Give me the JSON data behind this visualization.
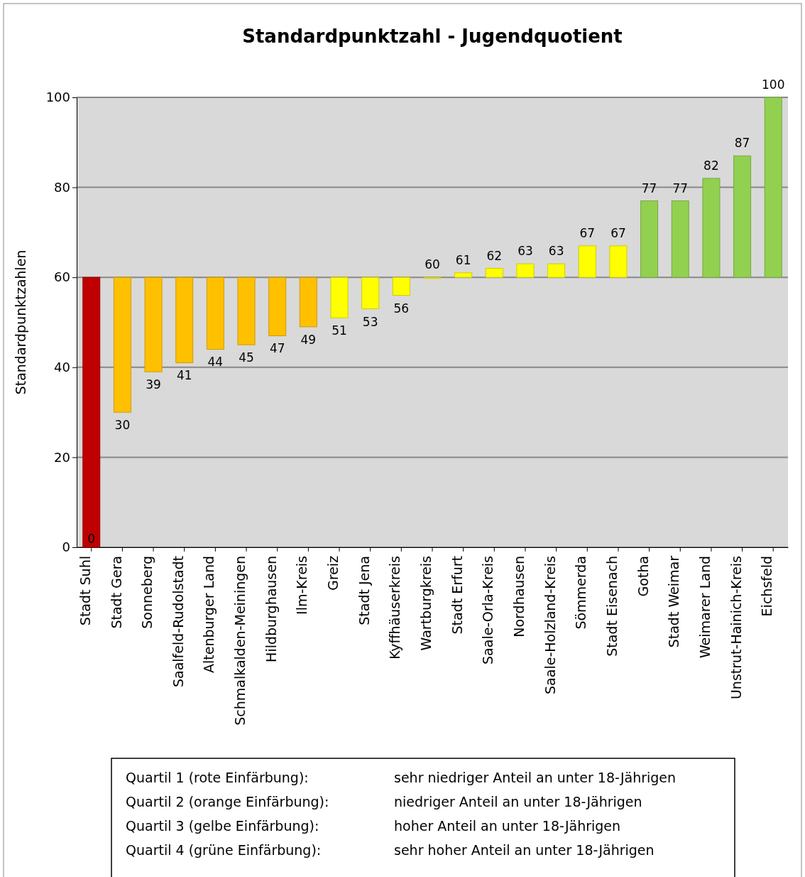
{
  "chart_data": {
    "type": "bar",
    "title": "Standardpunktzahl - Jugendquotient",
    "ylabel": "Standardpunktzahlen",
    "categories": [
      "Stadt Suhl",
      "Stadt Gera",
      "Sonneberg",
      "Saalfeld-Rudolstadt",
      "Altenburger Land",
      "Schmalkalden-Meiningen",
      "Hildburghausen",
      "Ilm-Kreis",
      "Greiz",
      "Stadt Jena",
      "Kyffhäuserkreis",
      "Wartburgkreis",
      "Stadt Erfurt",
      "Saale-Orla-Kreis",
      "Nordhausen",
      "Saale-Holzland-Kreis",
      "Sömmerda",
      "Stadt Eisenach",
      "Gotha",
      "Stadt Weimar",
      "Weimarer Land",
      "Unstrut-Hainich-Kreis",
      "Eichsfeld"
    ],
    "base": [
      60,
      60,
      60,
      60,
      60,
      60,
      60,
      60,
      60,
      60,
      60,
      60,
      60,
      60,
      60,
      60,
      60,
      60,
      60,
      60,
      60,
      60,
      60
    ],
    "values": [
      -60,
      -30,
      -21,
      -19,
      -16,
      -15,
      -13,
      -11,
      -9,
      -7,
      -4,
      0,
      1,
      2,
      3,
      3,
      7,
      7,
      17,
      17,
      22,
      27,
      40
    ],
    "value_labels": [
      "0",
      "30",
      "39",
      "41",
      "44",
      "45",
      "47",
      "49",
      "51",
      "53",
      "56",
      "60",
      "61",
      "62",
      "63",
      "63",
      "67",
      "67",
      "77",
      "77",
      "82",
      "87",
      "100"
    ],
    "colors": [
      "#c00000",
      "#ffc000",
      "#ffc000",
      "#ffc000",
      "#ffc000",
      "#ffc000",
      "#ffc000",
      "#ffc000",
      "#ffff00",
      "#ffff00",
      "#ffff00",
      "#ffff00",
      "#ffff00",
      "#ffff00",
      "#ffff00",
      "#ffff00",
      "#ffff00",
      "#ffff00",
      "#92d050",
      "#92d050",
      "#92d050",
      "#92d050",
      "#92d050"
    ],
    "ylim": [
      0,
      100
    ],
    "yticks": [
      0,
      20,
      40,
      60,
      80,
      100
    ],
    "grid": "y",
    "annotations": [
      "Quartil 1 (rote Einfärbung):",
      "sehr niedriger Anteil an unter 18-Jährigen",
      "Quartil 2 (orange Einfärbung):",
      "niedriger Anteil an unter 18-Jährigen",
      "Quartil 3 (gelbe Einfärbung):",
      "hoher Anteil an unter 18-Jährigen",
      "Quartil 4 (grüne Einfärbung):",
      "sehr hoher Anteil an unter 18-Jährigen"
    ]
  }
}
